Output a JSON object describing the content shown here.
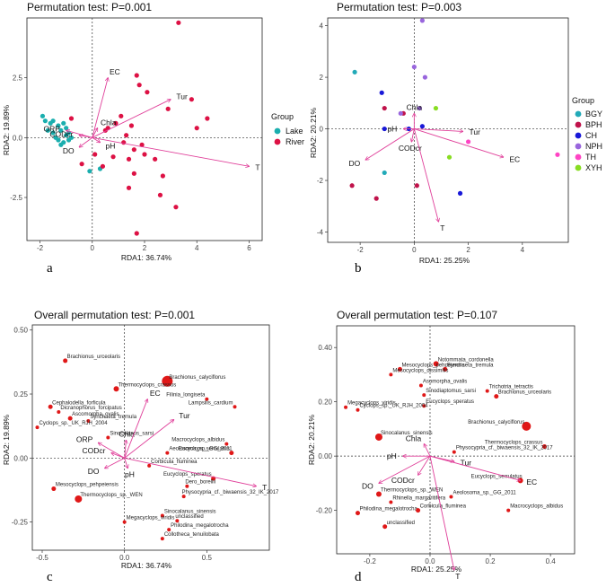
{
  "chart_data": [
    {
      "type": "scatter",
      "panel_label": "a",
      "title": "Permutation test: P=0.001",
      "xlabel": "RDA1: 36.74%",
      "ylabel": "RDA2: 19.89%",
      "xlim": [
        -2.5,
        6.5
      ],
      "ylim": [
        -4.3,
        5.0
      ],
      "xticks": [
        -2,
        0,
        2,
        4,
        6
      ],
      "yticks": [
        -2.5,
        0.0,
        2.5
      ],
      "legend": {
        "title": "Group",
        "position": "right",
        "items": [
          {
            "name": "Lake",
            "color": "#1aaeae"
          },
          {
            "name": "River",
            "color": "#dd1144"
          }
        ]
      },
      "series": [
        {
          "name": "Lake",
          "color": "#1aaeae",
          "points": [
            [
              -1.9,
              0.9
            ],
            [
              -1.8,
              0.7
            ],
            [
              -1.5,
              0.7
            ],
            [
              -1.3,
              0.5
            ],
            [
              -1.2,
              0.3
            ],
            [
              -1.0,
              0.1
            ],
            [
              -1.3,
              -0.1
            ],
            [
              -1.1,
              -0.2
            ],
            [
              -0.9,
              -0.1
            ],
            [
              -1.5,
              0.2
            ],
            [
              -1.7,
              0.3
            ],
            [
              -1.0,
              0.4
            ],
            [
              -1.2,
              -0.3
            ],
            [
              -0.8,
              0.0
            ],
            [
              -1.4,
              0.0
            ],
            [
              -0.9,
              0.2
            ],
            [
              -1.1,
              0.6
            ],
            [
              -1.6,
              0.6
            ],
            [
              0.3,
              -1.3
            ],
            [
              -0.1,
              -1.4
            ]
          ]
        },
        {
          "name": "River",
          "color": "#dd1144",
          "points": [
            [
              3.3,
              4.8
            ],
            [
              2.1,
              1.9
            ],
            [
              1.7,
              2.6
            ],
            [
              1.8,
              2.2
            ],
            [
              3.8,
              1.6
            ],
            [
              4.4,
              0.8
            ],
            [
              4.0,
              0.4
            ],
            [
              2.9,
              1.2
            ],
            [
              1.1,
              0.9
            ],
            [
              0.5,
              0.3
            ],
            [
              2.0,
              -0.7
            ],
            [
              2.4,
              -0.9
            ],
            [
              1.6,
              -0.5
            ],
            [
              1.3,
              0.1
            ],
            [
              1.6,
              -1.5
            ],
            [
              2.6,
              -2.4
            ],
            [
              0.1,
              -0.7
            ],
            [
              -0.4,
              -1.1
            ],
            [
              0.6,
              0.4
            ],
            [
              0.4,
              -1.2
            ],
            [
              3.2,
              -2.9
            ],
            [
              1.2,
              -0.2
            ],
            [
              1.4,
              -0.9
            ],
            [
              2.7,
              -1.6
            ],
            [
              0.8,
              -0.8
            ],
            [
              1.9,
              -0.3
            ],
            [
              0.9,
              0.6
            ],
            [
              -0.8,
              0.8
            ],
            [
              1.5,
              0.5
            ],
            [
              1.7,
              -4.0
            ],
            [
              1.4,
              -2.1
            ]
          ]
        }
      ],
      "arrows": [
        {
          "label": "EC",
          "x": 0.6,
          "y": 2.5
        },
        {
          "label": "Tur",
          "x": 3.0,
          "y": 1.6
        },
        {
          "label": "T",
          "x": 6.0,
          "y": -1.2
        },
        {
          "label": "ORP",
          "x": -1.0,
          "y": 0.3
        },
        {
          "label": "CODcr",
          "x": -0.5,
          "y": 0.1
        },
        {
          "label": "Chla",
          "x": 0.2,
          "y": 0.4
        },
        {
          "label": "DO",
          "x": -0.5,
          "y": -0.4
        },
        {
          "label": "pH",
          "x": 0.3,
          "y": -0.2
        }
      ]
    },
    {
      "type": "scatter",
      "panel_label": "b",
      "title": "Permutation test: P=0.003",
      "xlabel": "RDA1: 25.25%",
      "ylabel": "RDA2: 20.21%",
      "xlim": [
        -3.2,
        5.7
      ],
      "ylim": [
        -4.4,
        4.3
      ],
      "xticks": [
        -2,
        0,
        2,
        4
      ],
      "yticks": [
        -4,
        -2,
        0,
        2,
        4
      ],
      "legend": {
        "title": "Group",
        "position": "right",
        "items": [
          {
            "name": "BGY",
            "color": "#22aab8"
          },
          {
            "name": "BPH",
            "color": "#c0134b"
          },
          {
            "name": "CH",
            "color": "#1818d8"
          },
          {
            "name": "NPH",
            "color": "#9966dd"
          },
          {
            "name": "TH",
            "color": "#ff44c4"
          },
          {
            "name": "XYH",
            "color": "#88dd22"
          }
        ]
      },
      "series": [
        {
          "name": "BGY",
          "color": "#22aab8",
          "points": [
            [
              -2.2,
              2.2
            ],
            [
              -1.1,
              -1.7
            ]
          ]
        },
        {
          "name": "BPH",
          "color": "#c0134b",
          "points": [
            [
              -2.3,
              -2.2
            ],
            [
              -1.4,
              -2.7
            ],
            [
              0.1,
              -2.2
            ],
            [
              -1.1,
              0.8
            ],
            [
              -0.4,
              0.6
            ]
          ]
        },
        {
          "name": "CH",
          "color": "#1818d8",
          "points": [
            [
              -1.2,
              1.4
            ],
            [
              -1.1,
              0.0
            ],
            [
              -0.2,
              0.0
            ],
            [
              1.7,
              -2.5
            ],
            [
              0.3,
              0.1
            ]
          ]
        },
        {
          "name": "NPH",
          "color": "#9966dd",
          "points": [
            [
              0.3,
              4.2
            ],
            [
              0.0,
              2.4
            ],
            [
              0.4,
              2.0
            ],
            [
              -0.5,
              0.6
            ],
            [
              0.2,
              0.8
            ]
          ]
        },
        {
          "name": "TH",
          "color": "#ff44c4",
          "points": [
            [
              5.3,
              -1.0
            ],
            [
              2.0,
              -0.5
            ]
          ]
        },
        {
          "name": "XYH",
          "color": "#88dd22",
          "points": [
            [
              1.3,
              -1.1
            ],
            [
              0.8,
              0.8
            ]
          ]
        }
      ],
      "arrows": [
        {
          "label": "Chla",
          "x": 0.0,
          "y": 0.6
        },
        {
          "label": "pH",
          "x": -0.4,
          "y": 0.0
        },
        {
          "label": "Tur",
          "x": 1.8,
          "y": -0.1
        },
        {
          "label": "EC",
          "x": 3.3,
          "y": -1.1
        },
        {
          "label": "CODcr",
          "x": -0.1,
          "y": -0.5
        },
        {
          "label": "DO",
          "x": -1.8,
          "y": -1.2
        },
        {
          "label": "T",
          "x": 0.9,
          "y": -3.6
        }
      ]
    },
    {
      "type": "scatter",
      "panel_label": "c",
      "title": "Overall permutation test: P=0.001",
      "xlabel": "RDA1: 36.74%",
      "ylabel": "RDA2: 19.89%",
      "xlim": [
        -0.56,
        0.88
      ],
      "ylim": [
        -0.36,
        0.52
      ],
      "xticks": [
        -0.5,
        0.0,
        0.5
      ],
      "yticks": [
        -0.25,
        0.0,
        0.25,
        0.5
      ],
      "species": [
        {
          "label": "Brachionus_urceolaris",
          "x": -0.36,
          "y": 0.38,
          "size": 2.5
        },
        {
          "label": "Brachionus_calyciflorus",
          "x": 0.26,
          "y": 0.3,
          "size": 6
        },
        {
          "label": "Thermocyclops_crassus",
          "x": -0.05,
          "y": 0.27,
          "size": 3
        },
        {
          "label": "Filinia_longiseta",
          "x": 0.5,
          "y": 0.23,
          "size": 2
        },
        {
          "label": "Lampsilis_cardium",
          "x": 0.67,
          "y": 0.2,
          "size": 2
        },
        {
          "label": "Cephalodella_forficula",
          "x": -0.45,
          "y": 0.2,
          "size": 2.5
        },
        {
          "label": "Dicranophorus_forcipatus",
          "x": -0.4,
          "y": 0.18,
          "size": 2
        },
        {
          "label": "Ascomorpha_ovalis",
          "x": -0.33,
          "y": 0.155,
          "size": 2.5
        },
        {
          "label": "Synchaeta_tremula",
          "x": -0.22,
          "y": 0.145,
          "size": 2
        },
        {
          "label": "Cyclops_sp._UK_RJH_2004",
          "x": -0.53,
          "y": 0.12,
          "size": 2
        },
        {
          "label": "Sinocalanus_sarsi",
          "x": -0.1,
          "y": 0.08,
          "size": 2
        },
        {
          "label": "Macrocyclops_albidus",
          "x": 0.62,
          "y": 0.055,
          "size": 2
        },
        {
          "label": "Aeolosoma_sp._GG_2011",
          "x": 0.26,
          "y": 0.02,
          "size": 2
        },
        {
          "label": "Eucyclops_serrulatus",
          "x": 0.65,
          "y": 0.02,
          "size": 2.5
        },
        {
          "label": "Corbicula_fluminea",
          "x": 0.15,
          "y": -0.03,
          "size": 2
        },
        {
          "label": "Eucyclops_speratus",
          "x": 0.54,
          "y": -0.08,
          "size": 2.5
        },
        {
          "label": "Mesocyclops_pehpeiensis",
          "x": -0.43,
          "y": -0.12,
          "size": 2.5
        },
        {
          "label": "Dero_borellii",
          "x": 0.38,
          "y": -0.11,
          "size": 2
        },
        {
          "label": "Physocypria_cf._biwaensis_32_IK_2017",
          "x": 0.36,
          "y": -0.15,
          "size": 2
        },
        {
          "label": "Thermocyclops_sp._WEN",
          "x": -0.28,
          "y": -0.16,
          "size": 4
        },
        {
          "label": "Sinocalanus_sinensis",
          "x": 0.23,
          "y": -0.225,
          "size": 2
        },
        {
          "label": "unclassified",
          "x": 0.32,
          "y": -0.245,
          "size": 2
        },
        {
          "label": "Megacyclops_viridis",
          "x": 0.0,
          "y": -0.25,
          "size": 2
        },
        {
          "label": "Philodina_megalotrocha",
          "x": 0.27,
          "y": -0.28,
          "size": 2
        },
        {
          "label": "Collotheca_tenuilobata",
          "x": 0.23,
          "y": -0.315,
          "size": 2
        }
      ],
      "arrows": [
        {
          "label": "Chla",
          "x": 0.01,
          "y": 0.07
        },
        {
          "label": "Tur",
          "x": 0.3,
          "y": 0.15
        },
        {
          "label": "EC",
          "x": 0.14,
          "y": 0.23
        },
        {
          "label": "T",
          "x": 0.8,
          "y": -0.11
        },
        {
          "label": "ORP",
          "x": -0.16,
          "y": 0.06
        },
        {
          "label": "CODcr",
          "x": -0.08,
          "y": 0.02
        },
        {
          "label": "DO",
          "x": -0.12,
          "y": -0.04
        },
        {
          "label": "pH",
          "x": 0.02,
          "y": -0.04
        }
      ]
    },
    {
      "type": "scatter",
      "panel_label": "d",
      "title": "Overall permutation test: P=0.107",
      "xlabel": "RDA1: 25.25%",
      "ylabel": "RDA2: 20.21%",
      "xlim": [
        -0.31,
        0.48
      ],
      "ylim": [
        -0.36,
        0.48
      ],
      "xticks": [
        -0.2,
        0.0,
        0.2,
        0.4
      ],
      "yticks": [
        -0.2,
        0.0,
        0.2,
        0.4
      ],
      "species": [
        {
          "label": "Notommata_cordonella",
          "x": 0.02,
          "y": 0.34,
          "size": 3
        },
        {
          "label": "Mesocyclops_pehpeiensis",
          "x": -0.1,
          "y": 0.32,
          "size": 2.5
        },
        {
          "label": "Synchaeta_tremula",
          "x": 0.05,
          "y": 0.32,
          "size": 2.5
        },
        {
          "label": "Mesocyclops_dissimilis",
          "x": -0.13,
          "y": 0.3,
          "size": 2
        },
        {
          "label": "Asomorpha_ovalis",
          "x": -0.03,
          "y": 0.26,
          "size": 2
        },
        {
          "label": "Trichotria_tetractis",
          "x": 0.19,
          "y": 0.24,
          "size": 2
        },
        {
          "label": "Brachionus_urceolaris",
          "x": 0.22,
          "y": 0.22,
          "size": 2.5
        },
        {
          "label": "Sinodiaptomus_sarsi",
          "x": -0.02,
          "y": 0.225,
          "size": 2
        },
        {
          "label": "Megacyclops_viridis",
          "x": -0.28,
          "y": 0.18,
          "size": 2
        },
        {
          "label": "Eucyclops_speratus",
          "x": -0.02,
          "y": 0.185,
          "size": 2
        },
        {
          "label": "Cyclops_sp._UK_RJH_2004",
          "x": -0.24,
          "y": 0.17,
          "size": 2
        },
        {
          "label": "Brachionus_calyciflorus",
          "x": 0.32,
          "y": 0.11,
          "size": 5
        },
        {
          "label": "Sinocalanus_sinensis",
          "x": -0.17,
          "y": 0.07,
          "size": 4
        },
        {
          "label": "Thermocyclops_crassus",
          "x": 0.38,
          "y": 0.035,
          "size": 2.5
        },
        {
          "label": "Physocypria_cf._biwaensis_32_IK_2017",
          "x": 0.08,
          "y": 0.015,
          "size": 2
        },
        {
          "label": "Eucyclops_serrulatus",
          "x": 0.3,
          "y": -0.09,
          "size": 3
        },
        {
          "label": "Thermocyclops_sp._WEN",
          "x": -0.17,
          "y": -0.14,
          "size": 3
        },
        {
          "label": "Aeolosoma_sp._GG_2011",
          "x": 0.07,
          "y": -0.15,
          "size": 2
        },
        {
          "label": "Rhinella_margaritifera",
          "x": -0.13,
          "y": -0.17,
          "size": 2
        },
        {
          "label": "Macrocyclops_albidus",
          "x": 0.26,
          "y": -0.2,
          "size": 2
        },
        {
          "label": "Philodina_megalotrocha",
          "x": -0.24,
          "y": -0.21,
          "size": 2.5
        },
        {
          "label": "Corbicula_fluminea",
          "x": -0.04,
          "y": -0.2,
          "size": 2.5
        },
        {
          "label": "unclassified",
          "x": -0.15,
          "y": -0.26,
          "size": 2.5
        }
      ],
      "arrows": [
        {
          "label": "Chla",
          "x": -0.02,
          "y": 0.045
        },
        {
          "label": "pH",
          "x": -0.09,
          "y": 0.0
        },
        {
          "label": "Tur",
          "x": 0.08,
          "y": -0.02
        },
        {
          "label": "CODcr",
          "x": -0.04,
          "y": -0.07
        },
        {
          "label": "DO",
          "x": -0.17,
          "y": -0.1
        },
        {
          "label": "EC",
          "x": 0.3,
          "y": -0.09
        },
        {
          "label": "T",
          "x": 0.08,
          "y": -0.42
        }
      ]
    }
  ]
}
